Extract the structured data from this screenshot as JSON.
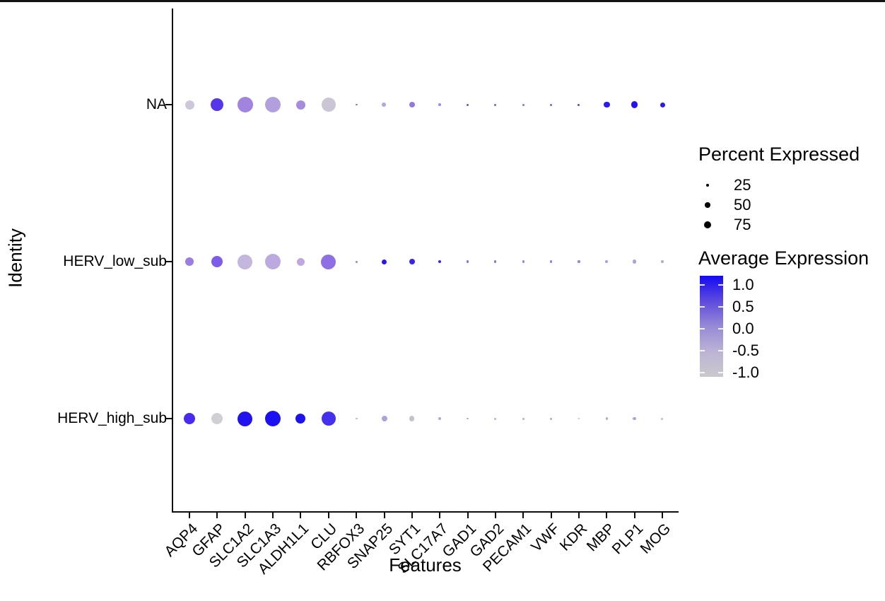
{
  "chart_data": {
    "type": "scatter",
    "subtype": "dot-plot",
    "title": "",
    "xlabel": "Features",
    "ylabel": "Identity",
    "grid": false,
    "features": [
      "AQP4",
      "GFAP",
      "SLC1A2",
      "SLC1A3",
      "ALDH1L1",
      "CLU",
      "RBFOX3",
      "SNAP25",
      "SYT1",
      "SLC17A7",
      "GAD1",
      "GAD2",
      "PECAM1",
      "VWF",
      "KDR",
      "MBP",
      "PLP1",
      "MOG"
    ],
    "identities": [
      "NA",
      "HERV_low_sub",
      "HERV_high_sub"
    ],
    "series": [
      {
        "identity": "NA",
        "percent_expressed": [
          54,
          79,
          100,
          100,
          54,
          90,
          2,
          18,
          28,
          8,
          3,
          3,
          3,
          3,
          3,
          33,
          38,
          23
        ],
        "avg_expression": [
          -0.6,
          0.7,
          0.0,
          -0.15,
          0.1,
          -0.55,
          0.3,
          -0.2,
          0.2,
          0.1,
          0.5,
          0.4,
          0.3,
          0.4,
          0.6,
          0.9,
          1.0,
          0.9
        ],
        "dot_colors": [
          "#cdc7d8",
          "#5636e8",
          "#a184dd",
          "#b2a0de",
          "#a78bdc",
          "#cbc5d6",
          "#8a6fd8",
          "#b6a4de",
          "#9379dc",
          "#9f8ade",
          "#6a50e0",
          "#7a60dd",
          "#8a70da",
          "#7a5fdd",
          "#5940e6",
          "#2b1bec",
          "#2414ee",
          "#2c1cea"
        ]
      },
      {
        "identity": "HERV_low_sub",
        "percent_expressed": [
          49,
          69,
          95,
          100,
          44,
          95,
          3,
          23,
          28,
          8,
          4,
          4,
          4,
          4,
          4,
          8,
          16,
          5
        ],
        "avg_expression": [
          0.3,
          0.5,
          -0.45,
          -0.3,
          -0.3,
          0.35,
          0.2,
          1.0,
          0.85,
          0.85,
          0.3,
          0.3,
          0.2,
          0.25,
          0.2,
          -0.1,
          -0.15,
          -0.2
        ],
        "dot_colors": [
          "#9b7de2",
          "#7c5ce8",
          "#c4b6dd",
          "#bca9e0",
          "#bfa8e2",
          "#8f6fe4",
          "#9a82da",
          "#2517ee",
          "#3a24ea",
          "#3b28e8",
          "#8a70dc",
          "#8a72dc",
          "#9a84da",
          "#9280dc",
          "#9a86da",
          "#af9cd9",
          "#b2a0d8",
          "#b8a8da"
        ]
      },
      {
        "identity": "HERV_high_sub",
        "percent_expressed": [
          69,
          69,
          95,
          100,
          59,
          90,
          2,
          28,
          24,
          7,
          2,
          3,
          3,
          3,
          2,
          4,
          12,
          3
        ],
        "avg_expression": [
          0.85,
          -0.85,
          1.0,
          1.0,
          1.0,
          0.9,
          -0.4,
          -0.3,
          -0.75,
          -0.35,
          -0.4,
          -0.45,
          -0.4,
          -0.35,
          -0.45,
          -0.35,
          -0.3,
          -0.5
        ],
        "dot_colors": [
          "#4a2bee",
          "#d0cfd3",
          "#2312f0",
          "#1b10f1",
          "#1d13ef",
          "#4431ee",
          "#c0b4d6",
          "#b2a0d8",
          "#c6c1cd",
          "#b5a6da",
          "#b8aad8",
          "#bdb2d6",
          "#b8abd8",
          "#b4a4da",
          "#bcb0d7",
          "#b6a8da",
          "#b3a2da",
          "#c2b8d5"
        ]
      }
    ],
    "legend_size": {
      "title": "Percent Expressed",
      "values": [
        "25",
        "50",
        "75"
      ],
      "key_color": "#000000"
    },
    "legend_color": {
      "title": "Average Expression",
      "tick_labels": [
        "1.0",
        "0.5",
        "0.0",
        "-0.5",
        "-1.0"
      ],
      "range": [
        -1.0,
        1.0
      ],
      "gradient_stops": [
        "#1409F2",
        "#5D4BDD",
        "#978AD6",
        "#BCB3D4",
        "#CBC9CC"
      ]
    }
  }
}
